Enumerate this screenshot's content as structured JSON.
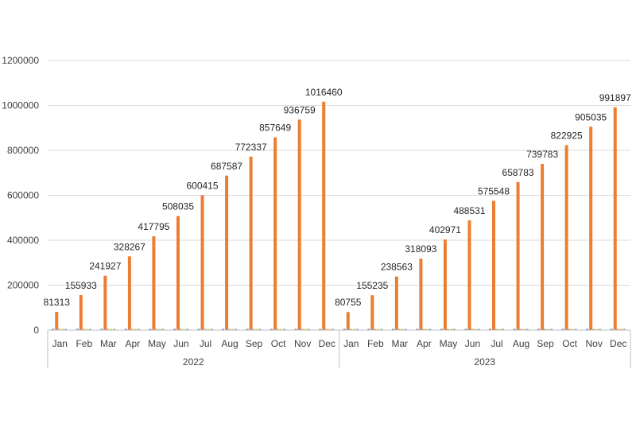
{
  "chart_data": {
    "type": "bar",
    "title": "",
    "xlabel": "",
    "ylabel": "",
    "ylim": [
      0,
      1200000
    ],
    "yticks": [
      0,
      200000,
      400000,
      600000,
      800000,
      1000000,
      1200000
    ],
    "grid": true,
    "legend": "none",
    "groups": [
      {
        "label": "2022",
        "categories": [
          "Jan",
          "Feb",
          "Mar",
          "Apr",
          "May",
          "Jun",
          "Jul",
          "Aug",
          "Sep",
          "Oct",
          "Nov",
          "Dec"
        ],
        "values": [
          81313,
          155933,
          241927,
          328267,
          417795,
          508035,
          600415,
          687587,
          772337,
          857649,
          936759,
          1016460
        ]
      },
      {
        "label": "2023",
        "categories": [
          "Jan",
          "Feb",
          "Mar",
          "Apr",
          "May",
          "Jun",
          "Jul",
          "Aug",
          "Sep",
          "Oct",
          "Nov",
          "Dec"
        ],
        "values": [
          80755,
          155235,
          238563,
          318093,
          402971,
          488531,
          575548,
          658783,
          739783,
          822925,
          905035,
          991897
        ]
      }
    ],
    "bar_color": "#ed7d31",
    "minor_series_colors": [
      "#4472c4",
      "#a5a5a5",
      "#ffc000",
      "#5b9bd5"
    ]
  }
}
